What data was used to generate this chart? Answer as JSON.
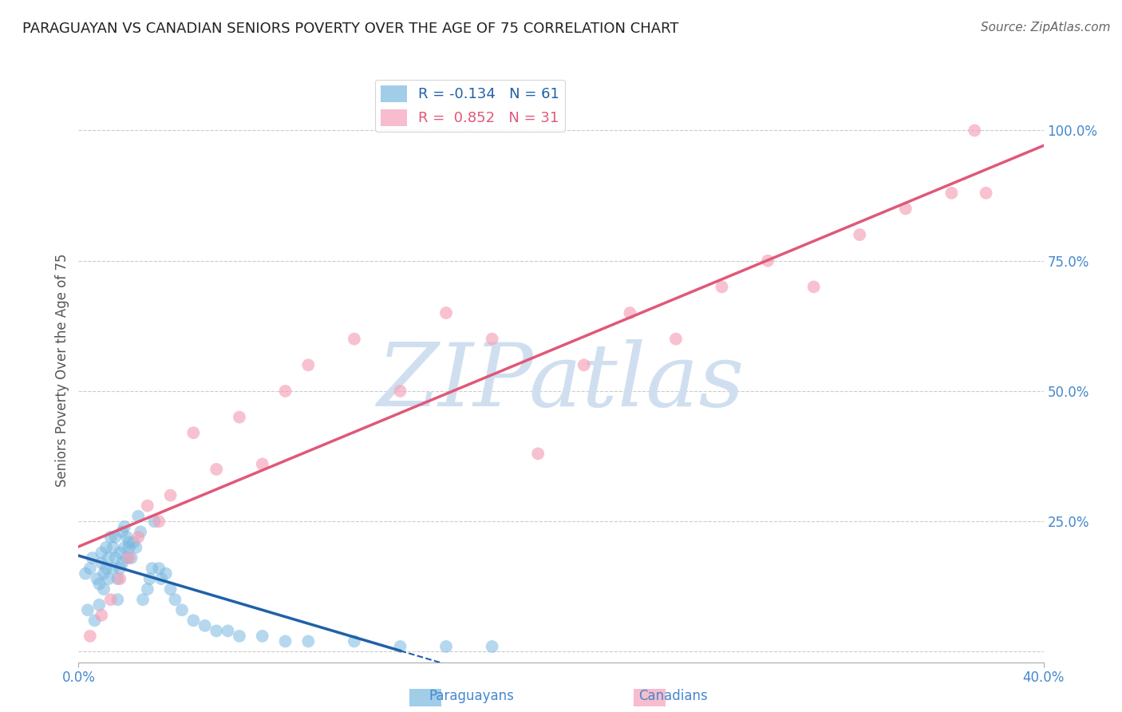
{
  "title": "PARAGUAYAN VS CANADIAN SENIORS POVERTY OVER THE AGE OF 75 CORRELATION CHART",
  "source": "Source: ZipAtlas.com",
  "ylabel": "Seniors Poverty Over the Age of 75",
  "xlim": [
    0.0,
    0.42
  ],
  "ylim": [
    -0.02,
    1.1
  ],
  "ytick_positions": [
    0.0,
    0.25,
    0.5,
    0.75,
    1.0
  ],
  "ytick_labels": [
    "",
    "25.0%",
    "50.0%",
    "75.0%",
    "100.0%"
  ],
  "R_blue": -0.134,
  "N_blue": 61,
  "R_pink": 0.852,
  "N_pink": 31,
  "blue_color": "#7ab8e0",
  "pink_color": "#f5a0b8",
  "blue_line_color": "#2060a8",
  "pink_line_color": "#e05878",
  "title_color": "#222222",
  "source_color": "#666666",
  "label_color": "#4488cc",
  "background_color": "#ffffff",
  "grid_color": "#cccccc",
  "watermark": "ZIPatlas",
  "watermark_color": "#d0dff0",
  "paraguayan_x": [
    0.003,
    0.004,
    0.005,
    0.006,
    0.007,
    0.008,
    0.009,
    0.009,
    0.01,
    0.01,
    0.011,
    0.011,
    0.012,
    0.012,
    0.013,
    0.013,
    0.014,
    0.015,
    0.015,
    0.016,
    0.016,
    0.017,
    0.017,
    0.018,
    0.018,
    0.019,
    0.019,
    0.02,
    0.02,
    0.021,
    0.021,
    0.022,
    0.022,
    0.023,
    0.024,
    0.025,
    0.026,
    0.027,
    0.028,
    0.03,
    0.031,
    0.032,
    0.033,
    0.035,
    0.036,
    0.038,
    0.04,
    0.042,
    0.045,
    0.05,
    0.055,
    0.06,
    0.065,
    0.07,
    0.08,
    0.09,
    0.1,
    0.12,
    0.14,
    0.16,
    0.18
  ],
  "paraguayan_y": [
    0.15,
    0.08,
    0.16,
    0.18,
    0.06,
    0.14,
    0.09,
    0.13,
    0.17,
    0.19,
    0.15,
    0.12,
    0.2,
    0.16,
    0.14,
    0.18,
    0.22,
    0.16,
    0.2,
    0.18,
    0.22,
    0.14,
    0.1,
    0.16,
    0.19,
    0.23,
    0.17,
    0.2,
    0.24,
    0.22,
    0.18,
    0.21,
    0.2,
    0.18,
    0.21,
    0.2,
    0.26,
    0.23,
    0.1,
    0.12,
    0.14,
    0.16,
    0.25,
    0.16,
    0.14,
    0.15,
    0.12,
    0.1,
    0.08,
    0.06,
    0.05,
    0.04,
    0.04,
    0.03,
    0.03,
    0.02,
    0.02,
    0.02,
    0.01,
    0.01,
    0.01
  ],
  "canadian_x": [
    0.005,
    0.01,
    0.014,
    0.018,
    0.022,
    0.026,
    0.03,
    0.035,
    0.04,
    0.05,
    0.06,
    0.07,
    0.08,
    0.09,
    0.1,
    0.12,
    0.14,
    0.16,
    0.18,
    0.2,
    0.22,
    0.24,
    0.26,
    0.28,
    0.3,
    0.32,
    0.34,
    0.36,
    0.38,
    0.39,
    0.395
  ],
  "canadian_y": [
    0.03,
    0.07,
    0.1,
    0.14,
    0.18,
    0.22,
    0.28,
    0.25,
    0.3,
    0.42,
    0.35,
    0.45,
    0.36,
    0.5,
    0.55,
    0.6,
    0.5,
    0.65,
    0.6,
    0.38,
    0.55,
    0.65,
    0.6,
    0.7,
    0.75,
    0.7,
    0.8,
    0.85,
    0.88,
    1.0,
    0.88
  ]
}
